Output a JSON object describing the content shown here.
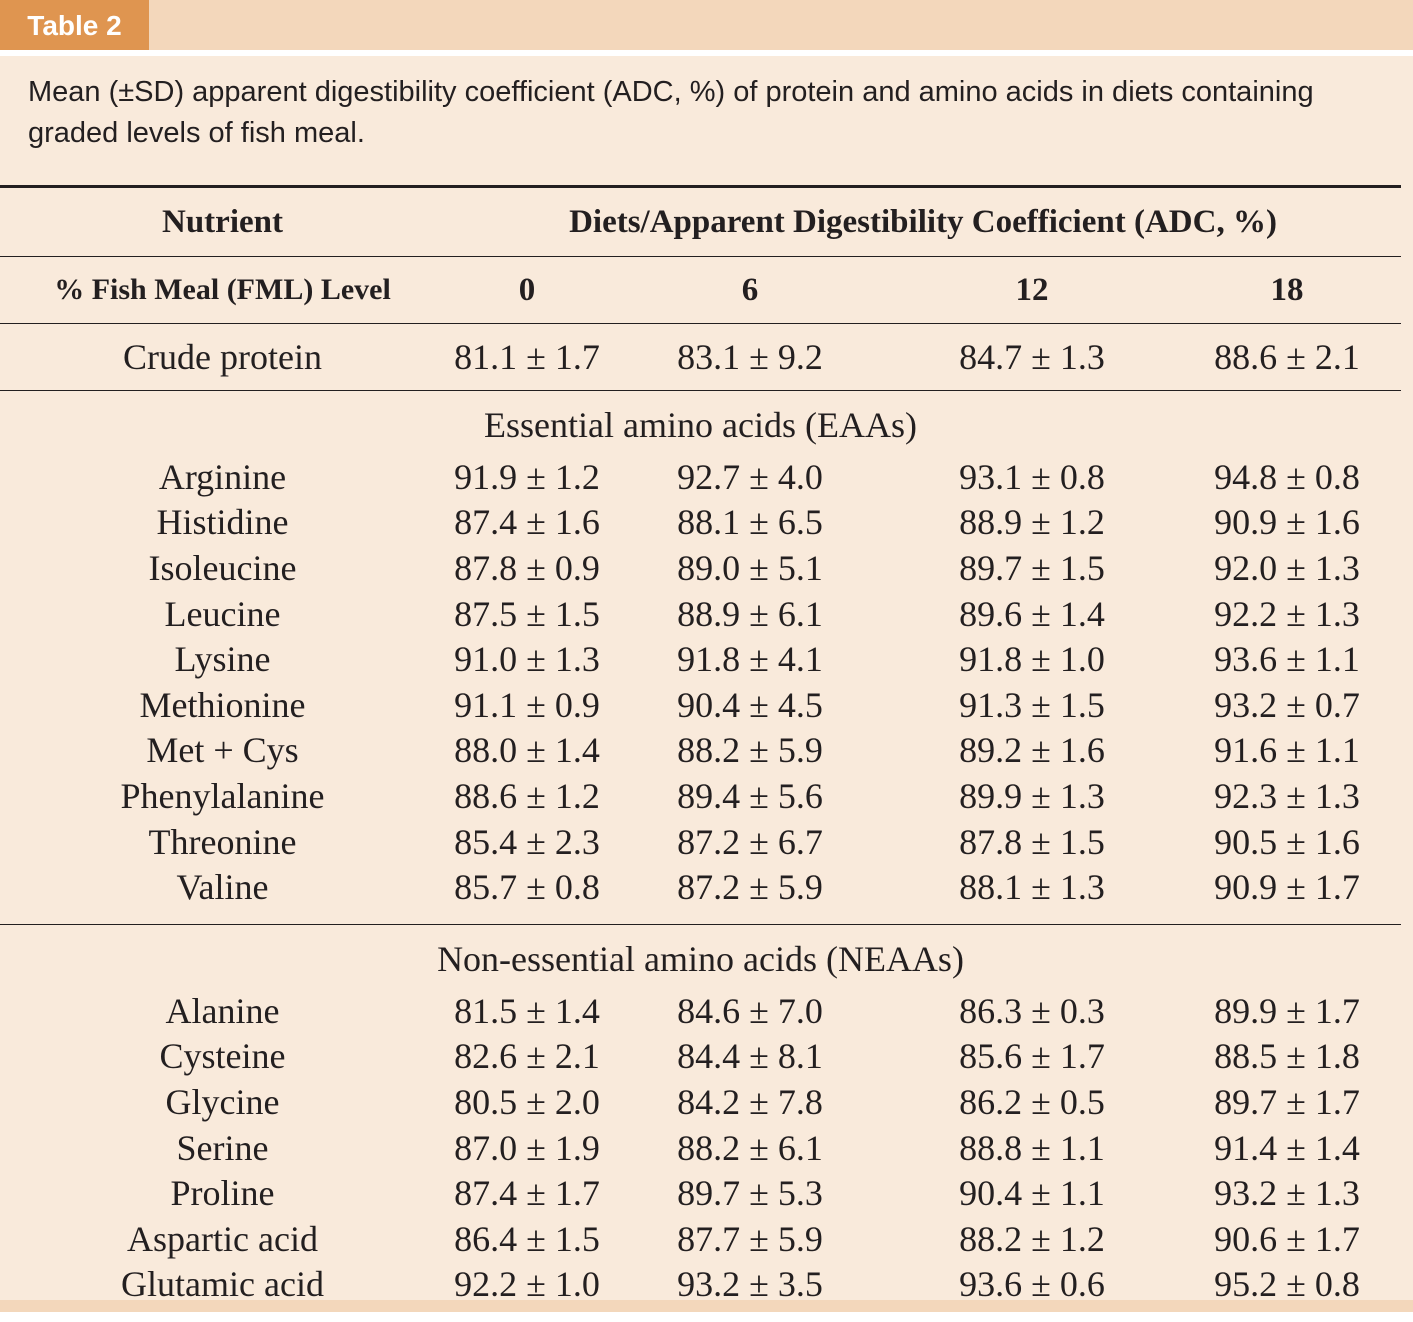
{
  "label": "Table 2",
  "caption": "Mean (±SD) apparent digestibility coefficient (ADC, %) of protein and amino acids in diets containing graded levels of fish meal.",
  "header": {
    "nutrient": "Nutrient",
    "diets": "Diets/Apparent Digestibility Coefficient (ADC, %)",
    "level_label": "% Fish Meal (FML) Level",
    "levels": [
      "0",
      "6",
      "12",
      "18"
    ]
  },
  "crude": {
    "name": "Crude protein",
    "values": [
      "81.1 ± 1.7",
      "83.1 ± 9.2",
      "84.7 ± 1.3",
      "88.6 ± 2.1"
    ]
  },
  "eaa": {
    "title": "Essential amino acids (EAAs)",
    "rows": [
      {
        "name": "Arginine",
        "values": [
          "91.9 ± 1.2",
          "92.7 ± 4.0",
          "93.1 ± 0.8",
          "94.8 ± 0.8"
        ]
      },
      {
        "name": "Histidine",
        "values": [
          "87.4 ± 1.6",
          "88.1 ± 6.5",
          "88.9 ± 1.2",
          "90.9 ± 1.6"
        ]
      },
      {
        "name": "Isoleucine",
        "values": [
          "87.8 ± 0.9",
          "89.0 ± 5.1",
          "89.7 ± 1.5",
          "92.0 ± 1.3"
        ]
      },
      {
        "name": "Leucine",
        "values": [
          "87.5 ± 1.5",
          "88.9 ± 6.1",
          "89.6 ± 1.4",
          "92.2 ± 1.3"
        ]
      },
      {
        "name": "Lysine",
        "values": [
          "91.0 ± 1.3",
          "91.8 ± 4.1",
          "91.8 ± 1.0",
          "93.6 ± 1.1"
        ]
      },
      {
        "name": "Methionine",
        "values": [
          "91.1 ± 0.9",
          "90.4 ± 4.5",
          "91.3 ± 1.5",
          "93.2 ± 0.7"
        ]
      },
      {
        "name": "Met + Cys",
        "values": [
          "88.0 ± 1.4",
          "88.2 ± 5.9",
          "89.2 ± 1.6",
          "91.6 ± 1.1"
        ]
      },
      {
        "name": "Phenylalanine",
        "values": [
          "88.6 ± 1.2",
          "89.4 ± 5.6",
          "89.9 ± 1.3",
          "92.3 ± 1.3"
        ]
      },
      {
        "name": "Threonine",
        "values": [
          "85.4 ± 2.3",
          "87.2 ± 6.7",
          "87.8 ± 1.5",
          "90.5 ± 1.6"
        ]
      },
      {
        "name": "Valine",
        "values": [
          "85.7 ± 0.8",
          "87.2 ± 5.9",
          "88.1 ± 1.3",
          "90.9 ± 1.7"
        ]
      }
    ]
  },
  "neaa": {
    "title": "Non-essential amino acids (NEAAs)",
    "rows": [
      {
        "name": "Alanine",
        "values": [
          "81.5 ± 1.4",
          "84.6 ± 7.0",
          "86.3 ± 0.3",
          "89.9 ± 1.7"
        ]
      },
      {
        "name": "Cysteine",
        "values": [
          "82.6 ± 2.1",
          "84.4 ± 8.1",
          "85.6 ± 1.7",
          "88.5 ± 1.8"
        ]
      },
      {
        "name": "Glycine",
        "values": [
          "80.5 ± 2.0",
          "84.2 ± 7.8",
          "86.2 ± 0.5",
          "89.7 ± 1.7"
        ]
      },
      {
        "name": "Serine",
        "values": [
          "87.0 ± 1.9",
          "88.2 ± 6.1",
          "88.8 ± 1.1",
          "91.4 ± 1.4"
        ]
      },
      {
        "name": "Proline",
        "values": [
          "87.4 ± 1.7",
          "89.7 ± 5.3",
          "90.4 ± 1.1",
          "93.2 ± 1.3"
        ]
      },
      {
        "name": "Aspartic acid",
        "values": [
          "86.4 ± 1.5",
          "87.7 ± 5.9",
          "88.2 ± 1.2",
          "90.6 ± 1.7"
        ]
      },
      {
        "name": "Glutamic acid",
        "values": [
          "92.2 ± 1.0",
          "93.2 ± 3.5",
          "93.6 ± 0.6",
          "95.2 ± 0.8"
        ]
      }
    ]
  },
  "colors": {
    "tab": "#df9550",
    "band": "#f3d7bb",
    "background": "#f9eadb",
    "text": "#231f20"
  }
}
